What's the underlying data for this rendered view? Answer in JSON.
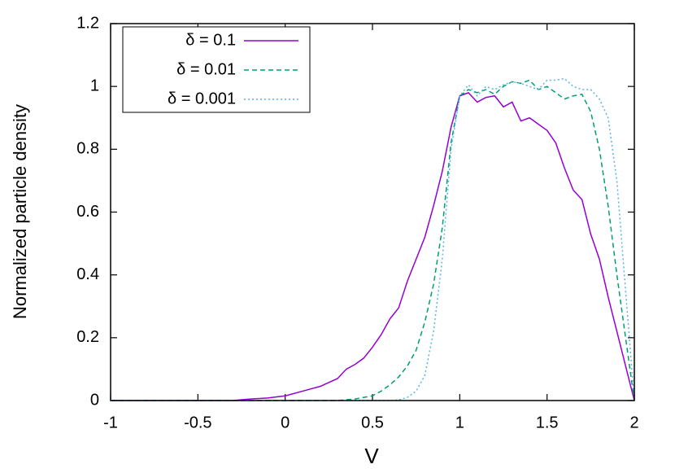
{
  "chart_data": {
    "type": "line",
    "xlabel": "V",
    "ylabel": "Normalized particle density",
    "xlim": [
      -1,
      2
    ],
    "xticks": [
      -1,
      -0.5,
      0,
      0.5,
      1,
      1.5,
      2
    ],
    "ylim": [
      0,
      1.2
    ],
    "yticks": [
      0,
      0.2,
      0.4,
      0.6,
      0.8,
      1,
      1.2
    ],
    "grid": false,
    "legend": "top-left",
    "series": [
      {
        "name": "δ = 0.1",
        "color": "#9400d3",
        "dash": "solid",
        "x": [
          -1,
          -0.5,
          -0.3,
          -0.2,
          -0.1,
          0,
          0.1,
          0.2,
          0.3,
          0.35,
          0.4,
          0.45,
          0.5,
          0.55,
          0.6,
          0.65,
          0.7,
          0.75,
          0.8,
          0.85,
          0.9,
          0.95,
          1.0,
          1.05,
          1.1,
          1.15,
          1.2,
          1.25,
          1.3,
          1.35,
          1.4,
          1.45,
          1.5,
          1.55,
          1.6,
          1.65,
          1.7,
          1.75,
          1.8,
          1.85,
          1.9,
          1.95,
          2.0
        ],
        "values": [
          0,
          0,
          0,
          0.005,
          0.008,
          0.015,
          0.03,
          0.045,
          0.07,
          0.1,
          0.115,
          0.135,
          0.17,
          0.21,
          0.26,
          0.295,
          0.38,
          0.45,
          0.52,
          0.62,
          0.73,
          0.87,
          0.97,
          0.98,
          0.95,
          0.965,
          0.97,
          0.935,
          0.95,
          0.89,
          0.9,
          0.88,
          0.86,
          0.82,
          0.74,
          0.67,
          0.64,
          0.53,
          0.45,
          0.33,
          0.22,
          0.11,
          0
        ]
      },
      {
        "name": "δ = 0.01",
        "color": "#009e73",
        "dash": "dashed",
        "x": [
          -1,
          0.3,
          0.4,
          0.5,
          0.55,
          0.6,
          0.65,
          0.7,
          0.75,
          0.8,
          0.85,
          0.9,
          0.95,
          1.0,
          1.05,
          1.1,
          1.15,
          1.2,
          1.25,
          1.3,
          1.35,
          1.4,
          1.45,
          1.5,
          1.55,
          1.6,
          1.65,
          1.7,
          1.75,
          1.8,
          1.85,
          1.9,
          1.95,
          2.0
        ],
        "values": [
          0,
          0,
          0.005,
          0.015,
          0.03,
          0.05,
          0.075,
          0.11,
          0.16,
          0.25,
          0.37,
          0.55,
          0.82,
          0.97,
          0.99,
          0.98,
          0.99,
          0.975,
          1.0,
          1.015,
          1.01,
          1.02,
          0.99,
          1.0,
          0.98,
          0.96,
          0.97,
          0.975,
          0.92,
          0.8,
          0.62,
          0.4,
          0.2,
          0
        ]
      },
      {
        "name": "δ = 0.001",
        "color": "#56b4e9",
        "dash": "dotted",
        "x": [
          -1,
          0.6,
          0.65,
          0.7,
          0.75,
          0.8,
          0.85,
          0.9,
          0.95,
          1.0,
          1.05,
          1.1,
          1.15,
          1.2,
          1.25,
          1.3,
          1.35,
          1.4,
          1.45,
          1.5,
          1.55,
          1.6,
          1.65,
          1.7,
          1.75,
          1.8,
          1.85,
          1.9,
          1.95,
          2.0
        ],
        "values": [
          0,
          0,
          0.002,
          0.01,
          0.03,
          0.08,
          0.22,
          0.45,
          0.8,
          0.97,
          1.005,
          0.97,
          1.0,
          0.99,
          1.005,
          1.015,
          1.01,
          1.0,
          0.99,
          1.02,
          1.02,
          1.025,
          1.0,
          0.99,
          0.99,
          0.96,
          0.9,
          0.7,
          0.35,
          0
        ]
      }
    ]
  }
}
